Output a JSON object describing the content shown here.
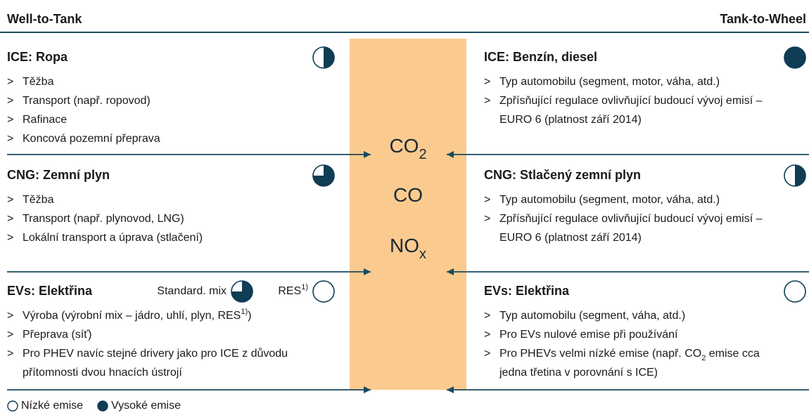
{
  "header": {
    "left": "Well-to-Tank",
    "right": "Tank-to-Wheel"
  },
  "bullet_marker": ">",
  "gases": [
    [
      "CO",
      {
        "sub": "2"
      }
    ],
    [
      "CO"
    ],
    [
      "NO",
      {
        "sub": "x"
      }
    ]
  ],
  "left_sections": [
    {
      "title": "ICE: Ropa",
      "balls": [
        {
          "rating": 0.5
        }
      ],
      "bullets": [
        [
          [
            "Těžba"
          ]
        ],
        [
          [
            "Transport (např. ropovod)"
          ]
        ],
        [
          [
            "Rafinace"
          ]
        ],
        [
          [
            "Koncová pozemní přeprava"
          ]
        ]
      ]
    },
    {
      "title": "CNG: Zemní plyn",
      "balls": [
        {
          "rating": 0.75
        }
      ],
      "bullets": [
        [
          [
            "Těžba"
          ]
        ],
        [
          [
            "Transport (např. plynovod, LNG)"
          ]
        ],
        [
          [
            "Lokální transport a úprava (stlačení)"
          ]
        ]
      ]
    },
    {
      "title": "EVs: Elektřina",
      "balls": [
        {
          "label": [
            "Standard. mix"
          ],
          "rating": 0.75
        },
        {
          "label": [
            "RES",
            {
              "sup": "1)"
            }
          ],
          "rating": 0
        }
      ],
      "bullets": [
        [
          [
            "Výroba (výrobní mix – jádro, uhlí, plyn, RES",
            {
              "sup": "1)"
            },
            ")"
          ]
        ],
        [
          [
            "Přeprava (síť)"
          ]
        ],
        [
          [
            "Pro PHEV navíc stejné drivery jako pro ICE z důvodu"
          ],
          [
            "přítomnosti dvou hnacích ústrojí"
          ]
        ]
      ]
    }
  ],
  "right_sections": [
    {
      "title": "ICE: Benzín, diesel",
      "balls": [
        {
          "rating": 1
        }
      ],
      "bullets": [
        [
          [
            "Typ automobilu (segment, motor, váha, atd.)"
          ]
        ],
        [
          [
            "Zpřísňující regulace ovlivňující budoucí vývoj emisí –"
          ],
          [
            "EURO 6 (platnost září 2014)"
          ]
        ]
      ]
    },
    {
      "title": "CNG: Stlačený zemní plyn",
      "balls": [
        {
          "rating": 0.5
        }
      ],
      "bullets": [
        [
          [
            "Typ automobilu (segment, motor, váha, atd.)"
          ]
        ],
        [
          [
            "Zpřísňující regulace ovlivňující budoucí vývoj emisí –"
          ],
          [
            "EURO 6 (platnost září 2014)"
          ]
        ]
      ]
    },
    {
      "title": "EVs: Elektřina",
      "balls": [
        {
          "rating": 0
        }
      ],
      "bullets": [
        [
          [
            "Typ automobilu (segment, váha, atd.)"
          ]
        ],
        [
          [
            "Pro EVs nulové emise při používání"
          ]
        ],
        [
          [
            "Pro PHEVs velmi nízké emise (např. CO",
            {
              "sub": "2"
            },
            " emise cca"
          ],
          [
            "jedna třetina v porovnání s ICE)"
          ]
        ]
      ]
    }
  ],
  "legend": [
    {
      "label": "Nízké emise",
      "rating": 0
    },
    {
      "label": "Vysoké emise",
      "rating": 1
    }
  ]
}
